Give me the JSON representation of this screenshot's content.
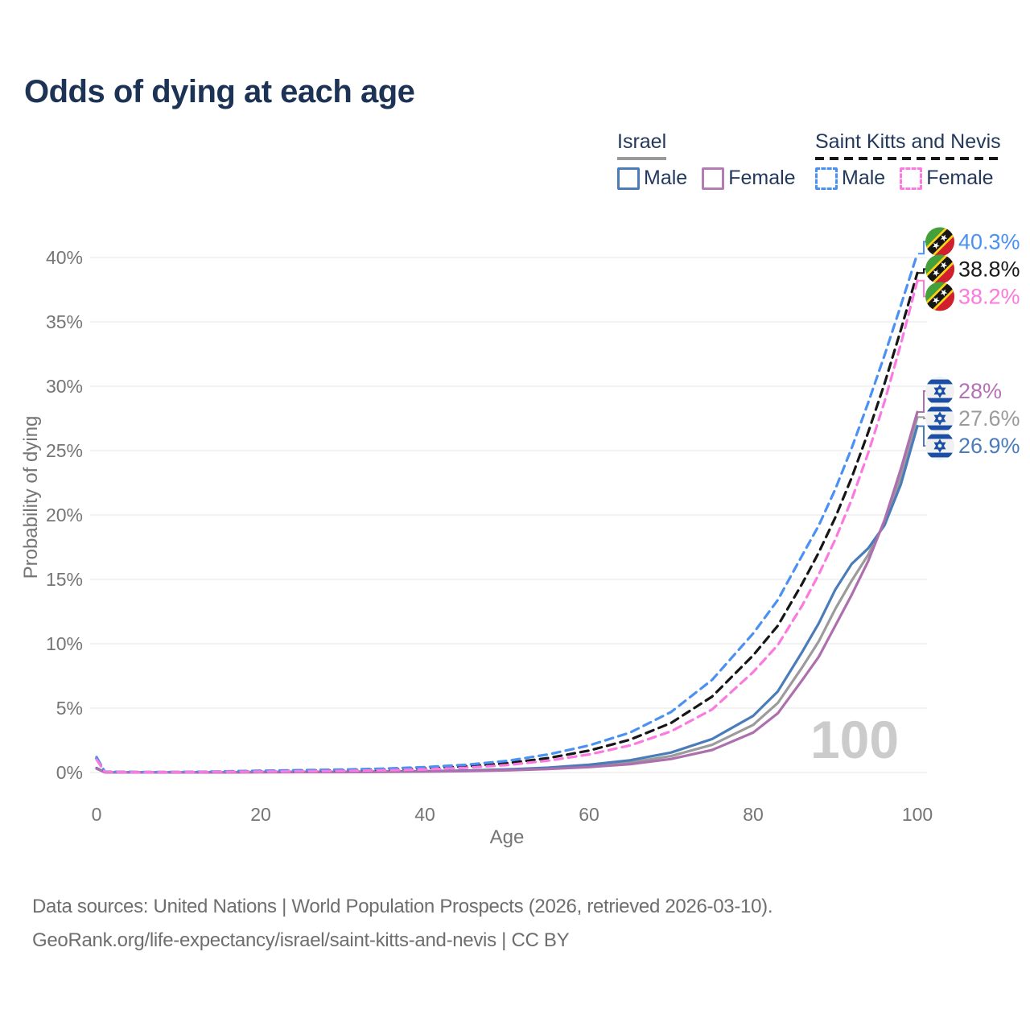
{
  "title": "Odds of dying at each age",
  "legend": {
    "groups": [
      {
        "country": "Israel",
        "line_style": "solid",
        "line_color": "#9a9a9a",
        "items": [
          {
            "label": "Male",
            "color": "#4b7cba"
          },
          {
            "label": "Female",
            "color": "#b57bb3"
          }
        ]
      },
      {
        "country": "Saint Kitts and Nevis",
        "line_style": "dashed",
        "line_color": "#161616",
        "items": [
          {
            "label": "Male",
            "color": "#4a91f2"
          },
          {
            "label": "Female",
            "color": "#fa7ae0"
          }
        ]
      }
    ]
  },
  "chart_data": {
    "type": "line",
    "title": "Odds of dying at each age",
    "xlabel": "Age",
    "ylabel": "Probability of dying",
    "xlim": [
      0,
      100
    ],
    "ylim_percent": [
      0,
      42
    ],
    "grid": true,
    "legend_position": "top-right",
    "age_indicator": "100",
    "x_ticks": [
      {
        "value": 0,
        "label": "0"
      },
      {
        "value": 20,
        "label": "20"
      },
      {
        "value": 40,
        "label": "40"
      },
      {
        "value": 60,
        "label": "60"
      },
      {
        "value": 80,
        "label": "80"
      },
      {
        "value": 100,
        "label": "100"
      }
    ],
    "y_ticks": [
      {
        "value": 0,
        "label": "0%"
      },
      {
        "value": 5,
        "label": "5%"
      },
      {
        "value": 10,
        "label": "10%"
      },
      {
        "value": 15,
        "label": "15%"
      },
      {
        "value": 20,
        "label": "20%"
      },
      {
        "value": 25,
        "label": "25%"
      },
      {
        "value": 30,
        "label": "30%"
      },
      {
        "value": 35,
        "label": "35%"
      },
      {
        "value": 40,
        "label": "40%"
      }
    ],
    "x": [
      0,
      1,
      5,
      10,
      15,
      20,
      25,
      30,
      35,
      40,
      45,
      50,
      55,
      60,
      65,
      70,
      75,
      80,
      83,
      86,
      88,
      90,
      92,
      94,
      96,
      98,
      100
    ],
    "series": [
      {
        "id": "israel",
        "name": "Israel",
        "country": "Israel",
        "sex": "Both",
        "color": "#9b9b9b",
        "dash": null,
        "end_label": "27.6%",
        "end_label_color": "#9b9b9b",
        "flag_icon": "israel-flag-icon",
        "values": [
          0.32,
          0.02,
          0.01,
          0.01,
          0.02,
          0.03,
          0.04,
          0.05,
          0.06,
          0.08,
          0.13,
          0.2,
          0.32,
          0.5,
          0.78,
          1.28,
          2.15,
          3.7,
          5.4,
          8.2,
          10.2,
          12.7,
          14.9,
          16.9,
          19.4,
          23.0,
          27.6
        ]
      },
      {
        "id": "israel-male",
        "name": "Israel Male",
        "country": "Israel",
        "sex": "Male",
        "color": "#4b7cba",
        "dash": null,
        "end_label": "26.9%",
        "end_label_color": "#4b7cba",
        "flag_icon": "israel-flag-icon",
        "values": [
          0.35,
          0.02,
          0.01,
          0.01,
          0.02,
          0.04,
          0.05,
          0.06,
          0.08,
          0.1,
          0.15,
          0.24,
          0.38,
          0.6,
          0.95,
          1.55,
          2.6,
          4.4,
          6.3,
          9.4,
          11.6,
          14.2,
          16.2,
          17.4,
          19.2,
          22.4,
          26.9
        ]
      },
      {
        "id": "israel-female",
        "name": "Israel Female",
        "country": "Israel",
        "sex": "Female",
        "color": "#ad6fad",
        "dash": null,
        "end_label": "28%",
        "end_label_color": "#b571b5",
        "flag_icon": "israel-flag-icon",
        "values": [
          0.3,
          0.02,
          0.01,
          0.01,
          0.01,
          0.02,
          0.03,
          0.03,
          0.05,
          0.07,
          0.11,
          0.17,
          0.27,
          0.42,
          0.65,
          1.05,
          1.75,
          3.1,
          4.6,
          7.2,
          9.0,
          11.4,
          13.8,
          16.4,
          19.6,
          23.6,
          28.0
        ]
      },
      {
        "id": "saint-kitts-and-nevis",
        "name": "Saint Kitts and Nevis",
        "country": "Saint Kitts and Nevis",
        "sex": "Both",
        "color": "#161616",
        "dash": "10 7",
        "end_label": "38.8%",
        "end_label_color": "#1b1b1b",
        "flag_icon": "saint-kitts-and-nevis-flag-icon",
        "values": [
          1.1,
          0.06,
          0.03,
          0.03,
          0.06,
          0.1,
          0.13,
          0.17,
          0.23,
          0.32,
          0.47,
          0.72,
          1.12,
          1.7,
          2.55,
          3.85,
          5.9,
          9.1,
          11.4,
          14.7,
          17.1,
          19.8,
          22.9,
          26.4,
          30.2,
          34.4,
          38.8
        ]
      },
      {
        "id": "saint-kitts-and-nevis-male",
        "name": "Saint Kitts and Nevis Male",
        "country": "Saint Kitts and Nevis",
        "sex": "Male",
        "color": "#4a91f2",
        "dash": "10 7",
        "end_label": "40.3%",
        "end_label_color": "#4a91f2",
        "flag_icon": "saint-kitts-and-nevis-flag-icon",
        "values": [
          1.2,
          0.07,
          0.03,
          0.04,
          0.08,
          0.14,
          0.18,
          0.23,
          0.3,
          0.42,
          0.6,
          0.9,
          1.4,
          2.1,
          3.1,
          4.7,
          7.2,
          10.8,
          13.4,
          16.9,
          19.2,
          22.0,
          25.2,
          28.7,
          32.4,
          36.3,
          40.3
        ]
      },
      {
        "id": "saint-kitts-and-nevis-female",
        "name": "Saint Kitts and Nevis Female",
        "country": "Saint Kitts and Nevis",
        "sex": "Female",
        "color": "#fa7ae0",
        "dash": "10 7",
        "end_label": "38.2%",
        "end_label_color": "#fa7ae0",
        "flag_icon": "saint-kitts-and-nevis-flag-icon",
        "values": [
          1.0,
          0.05,
          0.02,
          0.03,
          0.05,
          0.07,
          0.09,
          0.12,
          0.17,
          0.24,
          0.37,
          0.58,
          0.92,
          1.4,
          2.1,
          3.2,
          4.9,
          7.8,
          9.9,
          13.0,
          15.4,
          18.1,
          21.2,
          24.8,
          28.8,
          33.3,
          38.2
        ]
      }
    ]
  },
  "footer": {
    "lines": [
      "Data sources: United Nations | World Population Prospects (2026, retrieved 2026-03-10).",
      "GeoRank.org/life-expectancy/israel/saint-kitts-and-nevis | CC BY"
    ]
  }
}
